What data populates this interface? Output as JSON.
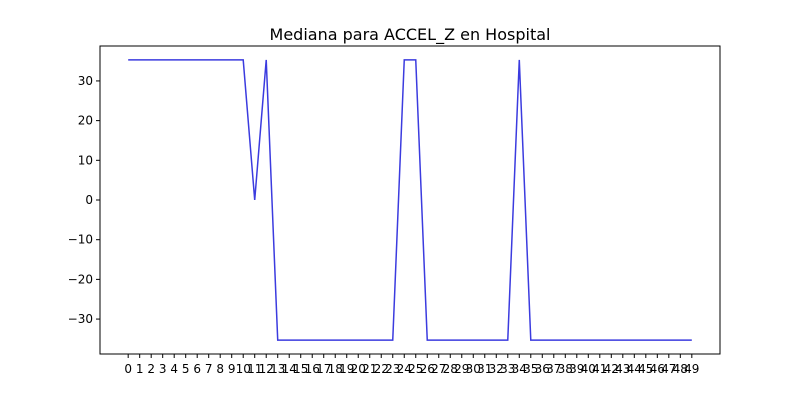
{
  "chart_data": {
    "type": "line",
    "title": "Mediana para ACCEL_Z en Hospital",
    "xlabel": "",
    "ylabel": "",
    "x": [
      0,
      1,
      2,
      3,
      4,
      5,
      6,
      7,
      8,
      9,
      10,
      11,
      12,
      13,
      14,
      15,
      16,
      17,
      18,
      19,
      20,
      21,
      22,
      23,
      24,
      25,
      26,
      27,
      28,
      29,
      30,
      31,
      32,
      33,
      34,
      35,
      36,
      37,
      38,
      39,
      40,
      41,
      42,
      43,
      44,
      45,
      46,
      47,
      48,
      49
    ],
    "series": [
      {
        "color": "#3b3bdf",
        "values": [
          35.3,
          35.3,
          35.3,
          35.3,
          35.3,
          35.3,
          35.3,
          35.3,
          35.3,
          35.3,
          35.3,
          0,
          35.3,
          -35.3,
          -35.3,
          -35.3,
          -35.3,
          -35.3,
          -35.3,
          -35.3,
          -35.3,
          -35.3,
          -35.3,
          -35.3,
          35.3,
          35.3,
          -35.3,
          -35.3,
          -35.3,
          -35.3,
          -35.3,
          -35.3,
          -35.3,
          -35.3,
          35.3,
          -35.3,
          -35.3,
          -35.3,
          -35.3,
          -35.3,
          -35.3,
          -35.3,
          -35.3,
          -35.3,
          -35.3,
          -35.3,
          -35.3,
          -35.3,
          -35.3,
          -35.3
        ]
      }
    ],
    "ylim": [
      -38.8,
      38.8
    ],
    "yticks": [
      30,
      20,
      10,
      0,
      -10,
      -20,
      -30
    ],
    "ytick_labels": [
      "30",
      "20",
      "10",
      "0",
      "−10",
      "−20",
      "−30"
    ],
    "grid": false
  }
}
